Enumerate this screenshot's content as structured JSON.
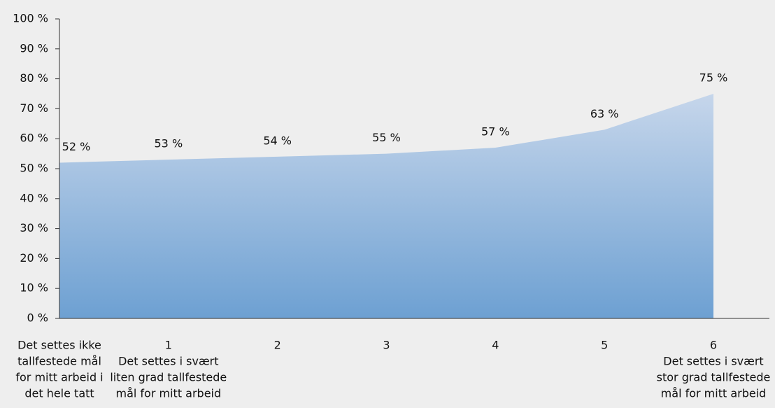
{
  "chart_data": {
    "type": "area",
    "categories": [
      [
        "Det settes ikke",
        "tallfestede mål",
        "for mitt arbeid i",
        "det hele tatt"
      ],
      [
        "1",
        "Det settes i svært",
        "liten grad tallfestede",
        "mål for mitt arbeid"
      ],
      [
        "2"
      ],
      [
        "3"
      ],
      [
        "4"
      ],
      [
        "5"
      ],
      [
        "6",
        "Det settes i svært",
        "stor grad tallfestede",
        "mål for mitt arbeid"
      ]
    ],
    "values": [
      52,
      53,
      54,
      55,
      57,
      63,
      75
    ],
    "value_labels": [
      "52 %",
      "53 %",
      "54 %",
      "55 %",
      "57 %",
      "63 %",
      "75 %"
    ],
    "color_top": "#c6d6eb",
    "color_bottom": "#6da0d2",
    "ylim": [
      0,
      100
    ],
    "yticks": [
      {
        "value": 0,
        "label": "0 %"
      },
      {
        "value": 10,
        "label": "10 %"
      },
      {
        "value": 20,
        "label": "20 %"
      },
      {
        "value": 30,
        "label": "30 %"
      },
      {
        "value": 40,
        "label": "40 %"
      },
      {
        "value": 50,
        "label": "50 %"
      },
      {
        "value": 60,
        "label": "60 %"
      },
      {
        "value": 70,
        "label": "70 %"
      },
      {
        "value": 80,
        "label": "80 %"
      },
      {
        "value": 90,
        "label": "90 %"
      },
      {
        "value": 100,
        "label": "100 %"
      }
    ]
  }
}
